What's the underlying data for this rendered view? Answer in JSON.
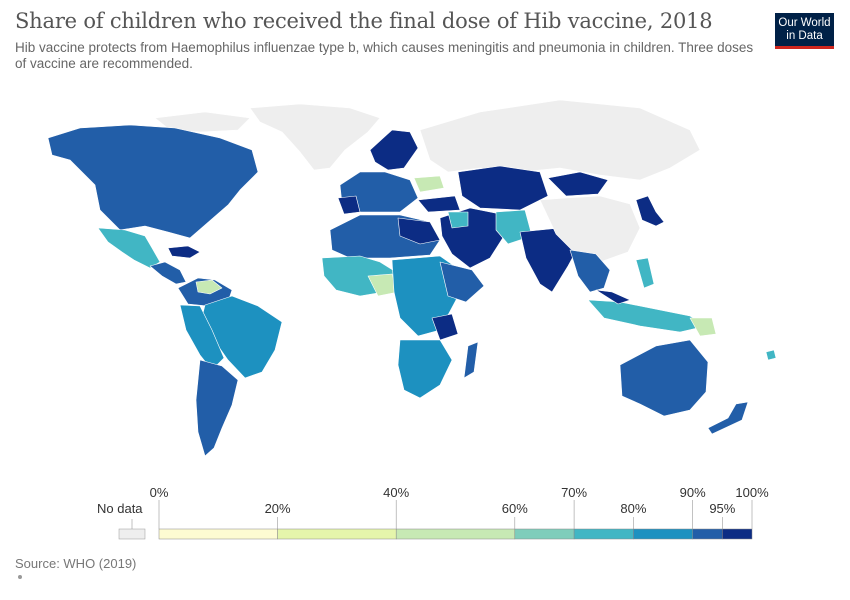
{
  "header": {
    "title": "Share of children who received the final dose of Hib vaccine, 2018",
    "subtitle": "Hib vaccine protects from Haemophilus influenzae type b, which causes meningitis and pneumonia in children. Three doses of vaccine are recommended."
  },
  "logo": {
    "line1": "Our World",
    "line2": "in Data"
  },
  "legend": {
    "no_data_label": "No data",
    "no_data_color": "#eeeeee",
    "bins": [
      {
        "from": "0%",
        "to": "20%",
        "color": "#fdfbd2"
      },
      {
        "from": "20%",
        "to": "40%",
        "color": "#e5f5ab"
      },
      {
        "from": "40%",
        "to": "60%",
        "color": "#c7e9b4"
      },
      {
        "from": "60%",
        "to": "70%",
        "color": "#7fcdbb"
      },
      {
        "from": "70%",
        "to": "80%",
        "color": "#41b6c4"
      },
      {
        "from": "80%",
        "to": "90%",
        "color": "#1d91c0"
      },
      {
        "from": "90%",
        "to": "95%",
        "color": "#225ea8"
      },
      {
        "from": "95%",
        "to": "100%",
        "color": "#0c2c84"
      }
    ],
    "tick_labels": [
      "0%",
      "20%",
      "40%",
      "60%",
      "70%",
      "80%",
      "90%",
      "95%",
      "100%"
    ]
  },
  "footer": {
    "source": "Source: WHO (2019)"
  }
}
